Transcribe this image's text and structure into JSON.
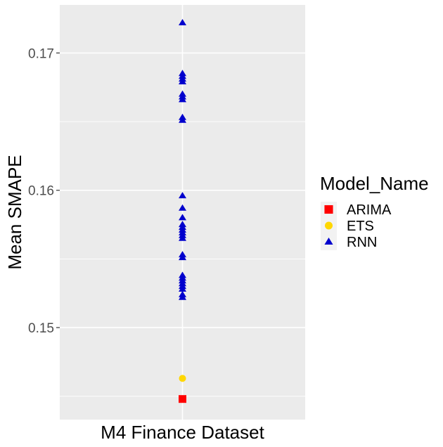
{
  "chart_data": {
    "type": "scatter",
    "categories": [
      "M4 Finance Dataset"
    ],
    "xlabel": "M4 Finance Dataset",
    "ylabel": "Mean SMAPE",
    "ylim": [
      0.1433,
      0.1735
    ],
    "yticks": [
      0.15,
      0.16,
      0.17
    ],
    "ytick_labels": [
      "0.15",
      "0.16",
      "0.17"
    ],
    "grid": true,
    "panel_background": "#ebebeb",
    "legend": {
      "title": "Model_Name",
      "placement": "right",
      "entries": [
        {
          "label": "ARIMA",
          "color": "#ff0000",
          "shape": "square"
        },
        {
          "label": "ETS",
          "color": "#ffd700",
          "shape": "circle"
        },
        {
          "label": "RNN",
          "color": "#0000cd",
          "shape": "triangle"
        }
      ]
    },
    "series": [
      {
        "name": "ARIMA",
        "color": "#ff0000",
        "shape": "square",
        "values": [
          0.1448
        ]
      },
      {
        "name": "ETS",
        "color": "#ffd700",
        "shape": "circle",
        "values": [
          0.1463
        ]
      },
      {
        "name": "RNN",
        "color": "#0000cd",
        "shape": "triangle",
        "values": [
          0.1722,
          0.1685,
          0.1683,
          0.1681,
          0.1679,
          0.167,
          0.1668,
          0.1666,
          0.1653,
          0.1651,
          0.1596,
          0.1587,
          0.158,
          0.1575,
          0.1573,
          0.1571,
          0.1569,
          0.1567,
          0.1565,
          0.1553,
          0.1551,
          0.1538,
          0.1536,
          0.1534,
          0.1532,
          0.153,
          0.1528,
          0.1524,
          0.1522
        ]
      }
    ]
  }
}
